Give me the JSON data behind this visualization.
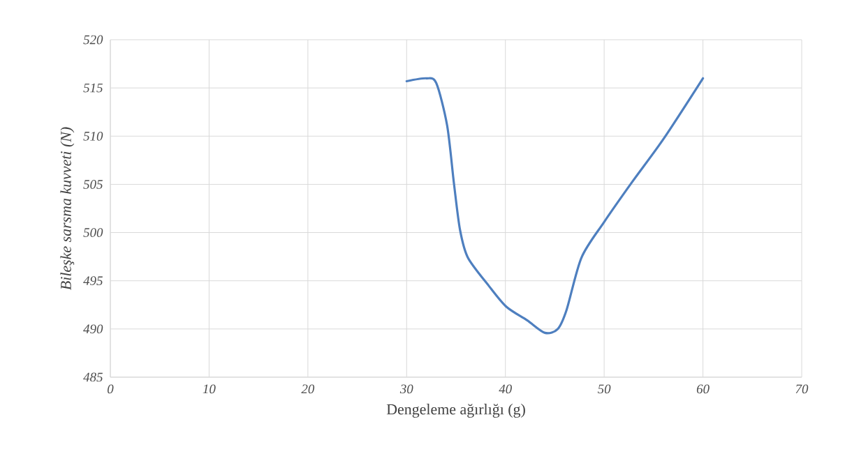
{
  "chart_data": {
    "type": "line",
    "xlabel": "Dengeleme ağırlığı (g)",
    "ylabel": "Bileşke sarsma kuvveti (N)",
    "xlim": [
      0,
      70
    ],
    "xticks": [
      0,
      10,
      20,
      30,
      40,
      50,
      60,
      70
    ],
    "ylim": [
      485,
      520
    ],
    "yticks": [
      485,
      490,
      495,
      500,
      505,
      510,
      515,
      520
    ],
    "grid": true,
    "marker": "none",
    "line_style": "solid",
    "series": [
      {
        "color": "#4e7fbf",
        "x": [
          30,
          32,
          33,
          34.1,
          34.8,
          35.4,
          36.2,
          38.3,
          40.1,
          42.2,
          44,
          45.3,
          46.2,
          47.7,
          50,
          52.8,
          56,
          60
        ],
        "values": [
          515.7,
          516.0,
          515.5,
          511.1,
          505,
          500.3,
          497.4,
          494.5,
          492.3,
          490.9,
          489.6,
          490,
          492,
          497.4,
          501.1,
          505.2,
          509.7,
          516
        ]
      }
    ]
  }
}
